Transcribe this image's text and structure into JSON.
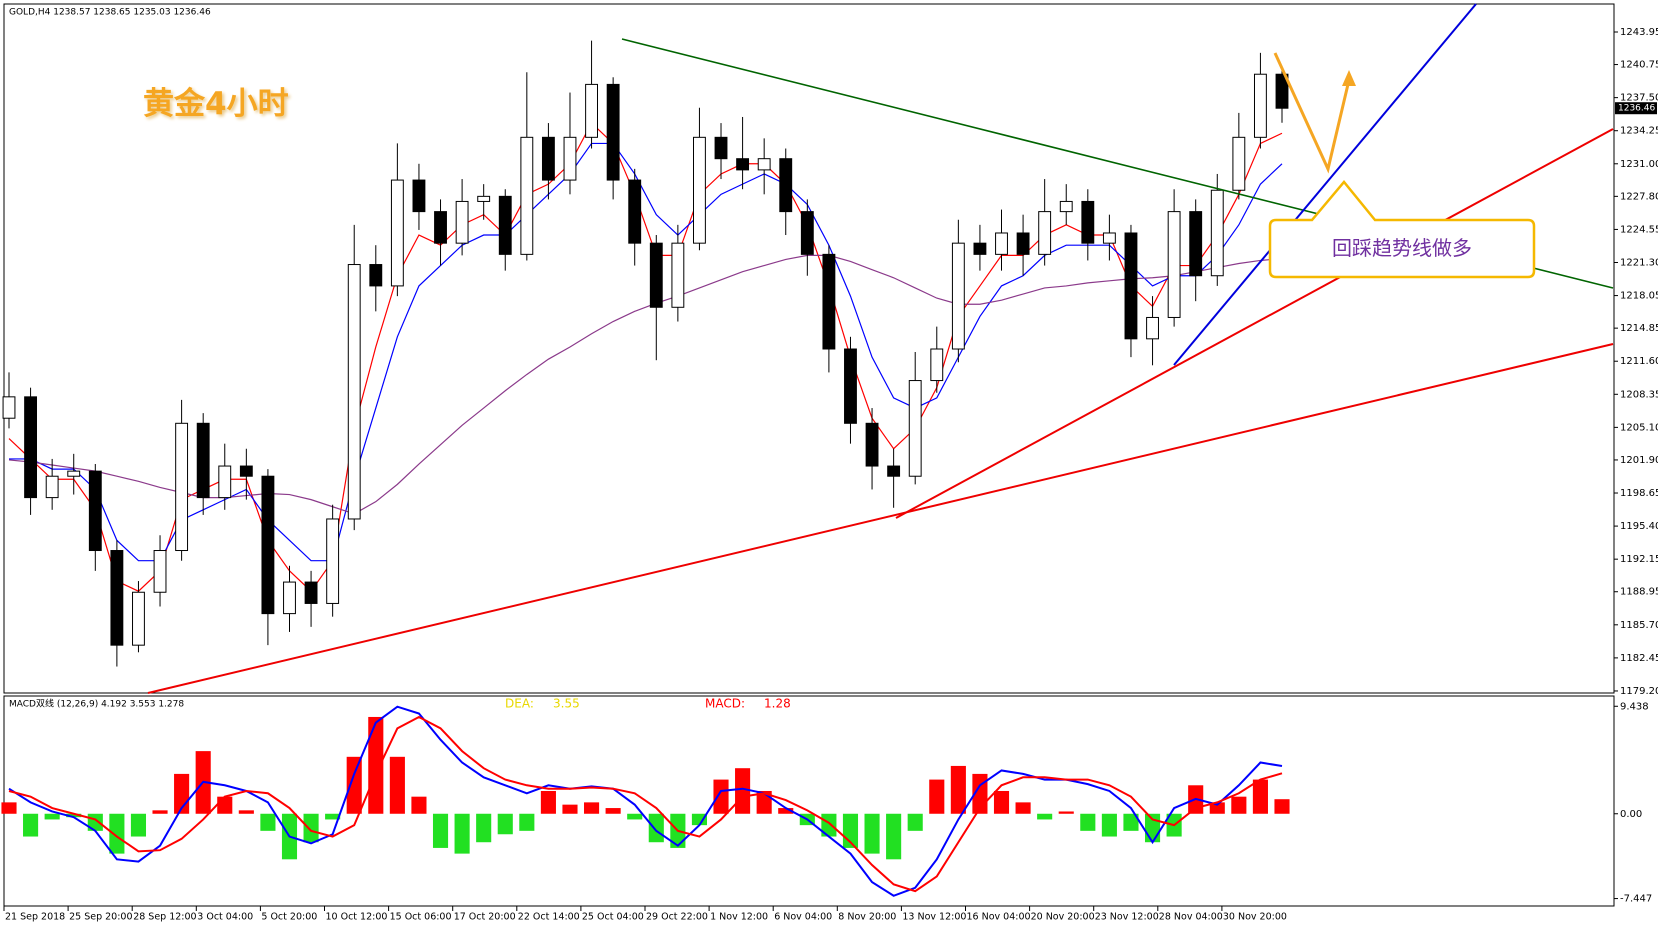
{
  "header": {
    "symbol_line": "GOLD,H4  1238.57 1238.65 1235.03 1236.46",
    "title": "黄金4小时",
    "callout": "回踩趋势线做多"
  },
  "chart_data": [
    {
      "type": "candlestick",
      "bull_color": "#ffffff",
      "bear_color": "#000000",
      "open": [
        1206.0,
        1208.1,
        1198.2,
        1200.3,
        1200.8,
        1193.0,
        1183.7,
        1188.9,
        1193.0,
        1205.5,
        1198.2,
        1201.3,
        1200.3,
        1186.8,
        1189.9,
        1187.8,
        1196.1,
        1221.1,
        1219.0,
        1229.4,
        1226.3,
        1223.2,
        1227.3,
        1227.8,
        1222.1,
        1233.6,
        1229.4,
        1233.6,
        1238.8,
        1229.4,
        1223.2,
        1216.9,
        1223.2,
        1233.6,
        1231.5,
        1230.4,
        1231.5,
        1226.3,
        1222.1,
        1212.8,
        1205.5,
        1201.3,
        1200.3,
        1209.7,
        1212.8,
        1223.2,
        1222.1,
        1224.2,
        1222.1,
        1226.3,
        1227.3,
        1223.2,
        1224.2,
        1213.8,
        1215.9,
        1226.3,
        1220.0,
        1228.4,
        1233.6,
        1239.8
      ],
      "high": [
        1210.5,
        1209.0,
        1202.0,
        1202.5,
        1201.5,
        1194.0,
        1190.0,
        1194.5,
        1207.8,
        1206.5,
        1203.5,
        1203.0,
        1201.0,
        1191.5,
        1191.0,
        1197.5,
        1225.0,
        1223.0,
        1233.0,
        1231.0,
        1227.5,
        1229.5,
        1229.0,
        1228.5,
        1240.0,
        1235.0,
        1238.0,
        1243.1,
        1239.5,
        1230.5,
        1224.0,
        1225.0,
        1236.5,
        1235.0,
        1235.6,
        1233.5,
        1232.5,
        1227.5,
        1223.0,
        1214.0,
        1207.0,
        1203.0,
        1212.5,
        1215.0,
        1225.5,
        1225.0,
        1226.5,
        1226.0,
        1229.5,
        1229.0,
        1228.5,
        1226.0,
        1225.0,
        1218.0,
        1228.5,
        1227.5,
        1230.0,
        1236.0,
        1241.9,
        1240.5
      ],
      "low": [
        1205.0,
        1196.5,
        1197.0,
        1198.5,
        1191.0,
        1181.6,
        1183.0,
        1187.5,
        1192.0,
        1196.5,
        1197.0,
        1198.0,
        1183.7,
        1185.0,
        1185.5,
        1186.5,
        1195.0,
        1216.5,
        1218.0,
        1224.5,
        1221.0,
        1222.0,
        1225.5,
        1220.5,
        1221.5,
        1227.5,
        1228.0,
        1232.5,
        1227.5,
        1221.0,
        1211.7,
        1215.5,
        1222.5,
        1229.5,
        1228.5,
        1228.0,
        1224.0,
        1220.0,
        1210.5,
        1203.5,
        1199.0,
        1197.2,
        1199.5,
        1208.5,
        1211.5,
        1220.5,
        1220.5,
        1220.0,
        1221.0,
        1225.0,
        1221.5,
        1221.5,
        1212.0,
        1211.2,
        1215.0,
        1217.5,
        1219.0,
        1227.5,
        1232.5,
        1235.03
      ],
      "close": [
        1208.1,
        1198.2,
        1200.3,
        1200.8,
        1193.0,
        1183.7,
        1188.9,
        1193.0,
        1205.5,
        1198.2,
        1201.3,
        1200.3,
        1186.8,
        1189.9,
        1187.8,
        1196.1,
        1221.1,
        1219.0,
        1229.4,
        1226.3,
        1223.2,
        1227.3,
        1227.8,
        1222.1,
        1233.6,
        1229.4,
        1233.6,
        1238.8,
        1229.4,
        1223.2,
        1216.9,
        1223.2,
        1233.6,
        1231.5,
        1230.4,
        1231.5,
        1226.3,
        1222.1,
        1212.8,
        1205.5,
        1201.3,
        1200.3,
        1209.7,
        1212.8,
        1223.2,
        1222.1,
        1224.2,
        1222.1,
        1226.3,
        1227.3,
        1223.2,
        1224.2,
        1213.8,
        1215.9,
        1226.3,
        1220.0,
        1228.4,
        1233.6,
        1239.8,
        1236.46
      ],
      "moving_averages": [
        {
          "color": "#ff0000",
          "values": [
            1204,
            1202,
            1200,
            1200,
            1197,
            1190,
            1189,
            1191,
            1198,
            1199,
            1200,
            1200,
            1194,
            1191,
            1189,
            1192,
            1205,
            1213,
            1220,
            1224,
            1223,
            1225,
            1226,
            1224,
            1228,
            1229,
            1231,
            1235,
            1233,
            1228,
            1222,
            1222,
            1228,
            1230,
            1231,
            1231,
            1229,
            1225,
            1219,
            1212,
            1206,
            1203,
            1205,
            1209,
            1216,
            1219,
            1222,
            1222,
            1224,
            1225,
            1224,
            1224,
            1219,
            1217,
            1221,
            1221,
            1224,
            1228,
            1233,
            1234
          ]
        },
        {
          "color": "#0000ff",
          "values": [
            1202,
            1202,
            1201,
            1201,
            1199,
            1194,
            1192,
            1192,
            1196,
            1197,
            1198,
            1199,
            1196,
            1194,
            1192,
            1192,
            1200,
            1207,
            1214,
            1219,
            1221,
            1223,
            1224,
            1224,
            1226,
            1228,
            1230,
            1233,
            1233,
            1230,
            1226,
            1224,
            1226,
            1228,
            1229,
            1230,
            1229,
            1227,
            1223,
            1218,
            1212,
            1208,
            1207,
            1208,
            1212,
            1216,
            1219,
            1220,
            1222,
            1223,
            1223,
            1223,
            1221,
            1219,
            1220,
            1220,
            1222,
            1225,
            1229,
            1231
          ]
        },
        {
          "color": "#8b3a8b",
          "values": [
            1201.9,
            1201.7,
            1201.4,
            1201.1,
            1200.8,
            1200.3,
            1199.8,
            1199.2,
            1198.7,
            1198.2,
            1198.2,
            1198.4,
            1198.6,
            1198.5,
            1198.0,
            1197.3,
            1196.6,
            1197.8,
            1199.5,
            1201.5,
            1203.4,
            1205.3,
            1207.0,
            1208.7,
            1210.3,
            1211.8,
            1213.0,
            1214.3,
            1215.5,
            1216.5,
            1217.3,
            1218.0,
            1218.8,
            1219.6,
            1220.4,
            1221.0,
            1221.6,
            1222.0,
            1222.0,
            1221.4,
            1220.6,
            1219.8,
            1218.8,
            1217.8,
            1217.2,
            1217.2,
            1217.6,
            1218.2,
            1218.8,
            1219.0,
            1219.3,
            1219.5,
            1219.7,
            1219.8,
            1220.0,
            1220.4,
            1220.8,
            1221.2,
            1221.5,
            1221.7
          ]
        }
      ],
      "last_price": 1236.46,
      "ylim": [
        1179,
        1246.7
      ],
      "yticks": [
        1243.95,
        1240.75,
        {
          "value": 1237.5,
          "label": "1237.50"
        },
        1234.25,
        {
          "value": 1231,
          "label": "1231.00"
        },
        {
          "value": 1227.8,
          "label": "1227.80"
        },
        1224.55,
        {
          "value": 1221.3,
          "label": "1221.30"
        },
        1218.05,
        1214.85,
        {
          "value": 1211.6,
          "label": "1211.60"
        },
        1208.35,
        {
          "value": 1205.1,
          "label": "1205.10"
        },
        {
          "value": 1201.9,
          "label": "1201.90"
        },
        1198.65,
        {
          "value": 1195.4,
          "label": "1195.40"
        },
        1192.15,
        1188.95,
        {
          "value": 1185.7,
          "label": "1185.70"
        },
        1182.45,
        {
          "value": 1179.2,
          "label": "1179.20"
        }
      ],
      "x_labels": [
        "21 Sep 2018",
        "25 Sep 20:00",
        "28 Sep 12:00",
        "3 Oct 04:00",
        "5 Oct 20:00",
        "10 Oct 12:00",
        "15 Oct 06:00",
        "17 Oct 20:00",
        "22 Oct 14:00",
        "25 Oct 04:00",
        "29 Oct 22:00",
        "1 Nov 12:00",
        "6 Nov 04:00",
        "8 Nov 20:00",
        "13 Nov 12:00",
        "16 Nov 04:00",
        "20 Nov 20:00",
        "23 Nov 12:00",
        "28 Nov 04:00",
        "30 Nov 20:00"
      ]
    },
    {
      "type": "macd",
      "header": "MACD双线 (12,26,9) 4.192 3.553 1.278",
      "dea_label": "DEA:",
      "dea_value": 3.55,
      "macd_label": "MACD:",
      "macd_value": 1.28,
      "positive_color": "#ff0000",
      "negative_color": "#22e022",
      "macd_color": "#0000ff",
      "signal_color": "#ff0000",
      "histogram": [
        1.0,
        -2.0,
        -0.5,
        -0.3,
        -1.5,
        -3.5,
        -2.0,
        0.3,
        3.5,
        5.5,
        1.5,
        0.3,
        -1.5,
        -4.0,
        -2.5,
        -0.5,
        5.0,
        8.5,
        5.0,
        1.5,
        -3.0,
        -3.5,
        -2.5,
        -1.8,
        -1.5,
        2.0,
        0.8,
        1.0,
        0.5,
        -0.5,
        -2.5,
        -3.0,
        -1.0,
        3.0,
        4.0,
        2.0,
        0.5,
        -1.0,
        -2.0,
        -3.0,
        -3.5,
        -4.0,
        -1.5,
        3.0,
        4.2,
        3.5,
        2.0,
        1.0,
        -0.5,
        0.2,
        -1.5,
        -2.0,
        -1.5,
        -2.5,
        -2.0,
        2.5,
        1.0,
        1.5,
        3.0,
        1.278
      ],
      "macd": [
        2.2,
        1.0,
        0.2,
        -0.3,
        -1.5,
        -4.0,
        -4.2,
        -2.8,
        0.5,
        2.8,
        2.5,
        2.0,
        1.0,
        -2.0,
        -2.6,
        -1.8,
        3.5,
        8.0,
        9.4,
        8.8,
        6.5,
        4.5,
        3.2,
        2.5,
        1.8,
        2.5,
        2.2,
        2.4,
        2.2,
        0.8,
        -1.5,
        -2.8,
        -1.0,
        2.0,
        2.2,
        1.8,
        0.5,
        -0.5,
        -2.0,
        -3.5,
        -6.0,
        -7.2,
        -6.5,
        -4.0,
        -0.5,
        2.5,
        3.8,
        3.5,
        3.0,
        3.0,
        2.6,
        2.0,
        0.5,
        -2.5,
        0.5,
        1.3,
        0.8,
        2.5,
        4.5,
        4.192
      ],
      "signal": [
        2.0,
        1.5,
        0.5,
        0.0,
        -0.5,
        -2.0,
        -3.3,
        -3.2,
        -2.2,
        -0.5,
        1.5,
        2.0,
        1.8,
        0.5,
        -1.5,
        -2.0,
        -1.0,
        3.5,
        7.5,
        8.5,
        7.5,
        5.5,
        4.0,
        3.0,
        2.5,
        2.2,
        2.2,
        2.3,
        2.2,
        1.8,
        0.5,
        -1.5,
        -2.0,
        -0.5,
        1.5,
        1.8,
        1.2,
        0.3,
        -0.8,
        -2.5,
        -4.5,
        -6.2,
        -6.8,
        -5.5,
        -2.5,
        0.5,
        2.5,
        3.2,
        3.2,
        3.0,
        3.0,
        2.5,
        1.5,
        -0.5,
        -1.0,
        0.5,
        1.0,
        1.8,
        3.0,
        3.553
      ],
      "ylim": [
        -8.1,
        10.34
      ],
      "yticks": [
        9.438,
        {
          "value": 0,
          "label": "0.00"
        },
        -7.447
      ]
    }
  ]
}
